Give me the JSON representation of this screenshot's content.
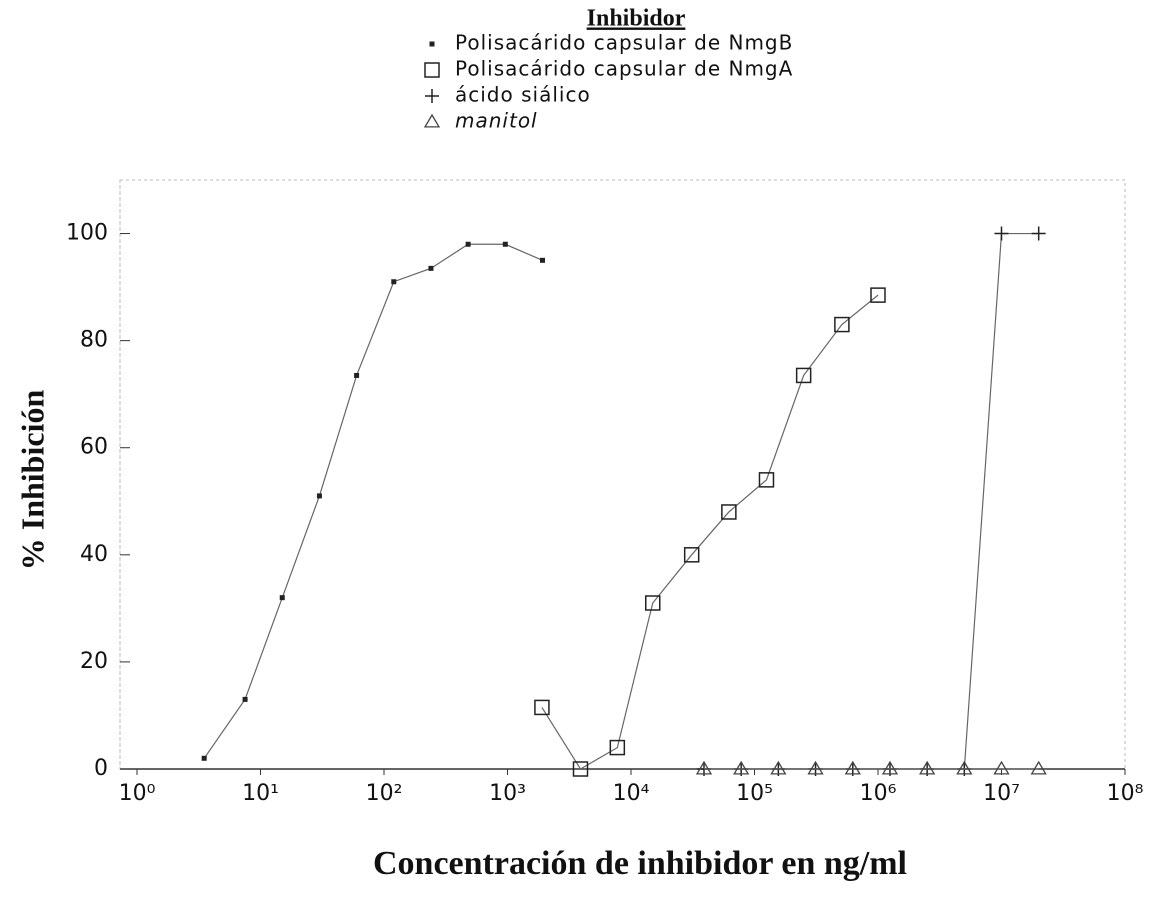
{
  "chart_data": {
    "type": "line",
    "legend_title": "Inhibidor",
    "xlabel": "Concentración de inhibidor en ng/ml",
    "ylabel": "% Inhibición",
    "xscale": "log",
    "xlim": [
      1,
      100000000
    ],
    "xticks": [
      {
        "value": 1,
        "label": "10⁰"
      },
      {
        "value": 10,
        "label": "10¹"
      },
      {
        "value": 100,
        "label": "10²"
      },
      {
        "value": 1000,
        "label": "10³"
      },
      {
        "value": 10000,
        "label": "10⁴"
      },
      {
        "value": 100000,
        "label": "10⁵"
      },
      {
        "value": 1000000,
        "label": "10⁶"
      },
      {
        "value": 10000000,
        "label": "10⁷"
      },
      {
        "value": 100000000,
        "label": "10⁸"
      }
    ],
    "ylim": [
      0,
      110
    ],
    "yticks": [
      0,
      20,
      40,
      60,
      80,
      100
    ],
    "series": [
      {
        "name": "Polisacárido capsular de NmgB",
        "color": "#222222",
        "marker": "filled-square",
        "x": [
          3.5,
          7.5,
          15,
          30,
          60,
          120,
          240,
          480,
          960,
          1920
        ],
        "values": [
          2,
          13,
          32,
          51,
          73.5,
          91,
          93.5,
          98,
          98,
          95
        ]
      },
      {
        "name": "Polisacárido capsular de NmgA",
        "color": "#222222",
        "marker": "open-square",
        "x": [
          1900,
          3900,
          7750,
          15000,
          31000,
          62000,
          125000,
          250000,
          510000,
          1000000
        ],
        "values": [
          11.5,
          0,
          4,
          31,
          40,
          48,
          54,
          73.5,
          83,
          88.5
        ]
      },
      {
        "name": "ácido siálico",
        "color": "#222222",
        "marker": "plus",
        "x": [
          39000,
          78000,
          156000,
          312000,
          625000,
          1250000,
          2500000,
          5000000,
          10000000,
          20000000
        ],
        "values": [
          0,
          0,
          0,
          0,
          0,
          0,
          0,
          0,
          100,
          100
        ]
      },
      {
        "name": "manitol",
        "color": "#444444",
        "marker": "triangle",
        "x": [
          39000,
          78000,
          156000,
          312000,
          625000,
          1250000,
          2500000,
          5000000,
          10000000,
          20000000
        ],
        "values": [
          0,
          0,
          0,
          0,
          0,
          0,
          0,
          0,
          0,
          0
        ]
      }
    ]
  }
}
